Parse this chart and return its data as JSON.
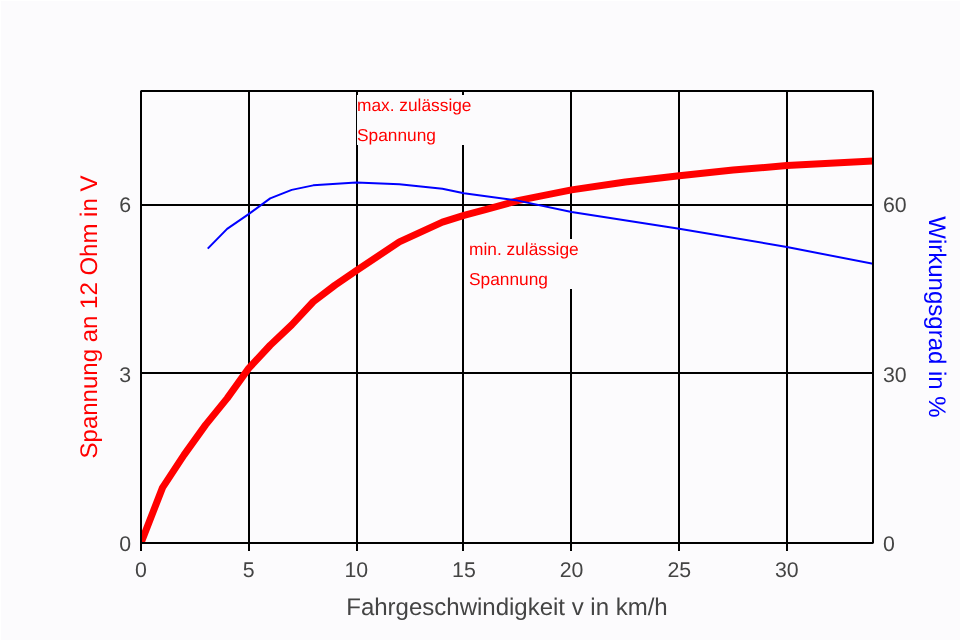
{
  "chart_data": {
    "type": "line",
    "xlabel": "Fahrgeschwindigkeit v in km/h",
    "ylabel": "Spannung an 12 Ohm in V",
    "y2label": "Wirkungsgrad in %",
    "xlim": [
      0,
      34
    ],
    "xticks": [
      0,
      5,
      10,
      15,
      20,
      25,
      30
    ],
    "ylim": [
      0,
      8
    ],
    "yticks": [
      0,
      3,
      6
    ],
    "y2lim": [
      0,
      80
    ],
    "y2ticks": [
      0,
      30,
      60
    ],
    "grid": true,
    "marker": "none",
    "series": [
      {
        "color": "#ff0000",
        "x": [
          0,
          1,
          2,
          3,
          4,
          5,
          6,
          7,
          8,
          9,
          10,
          12,
          14,
          15,
          16,
          17.5,
          20,
          22.5,
          25,
          27.5,
          30,
          34
        ],
        "values": [
          0,
          0.98,
          1.56,
          2.09,
          2.56,
          3.09,
          3.5,
          3.86,
          4.27,
          4.56,
          4.82,
          5.33,
          5.68,
          5.8,
          5.9,
          6.06,
          6.25,
          6.39,
          6.5,
          6.6,
          6.68,
          6.76
        ]
      },
      {
        "color": "#0000ff",
        "axis": "y2",
        "x": [
          3.1,
          4,
          5,
          6,
          7,
          8,
          10,
          12,
          14,
          15,
          17.5,
          20,
          25,
          30,
          34
        ],
        "values": [
          52.1,
          55.6,
          58.2,
          61,
          62.5,
          63.3,
          63.8,
          63.5,
          62.7,
          61.9,
          60.6,
          58.6,
          55.6,
          52.4,
          49.4
        ]
      }
    ],
    "annotations": [
      "max. zulässige\nSpannung",
      "min. zulässige\nSpannung"
    ]
  }
}
